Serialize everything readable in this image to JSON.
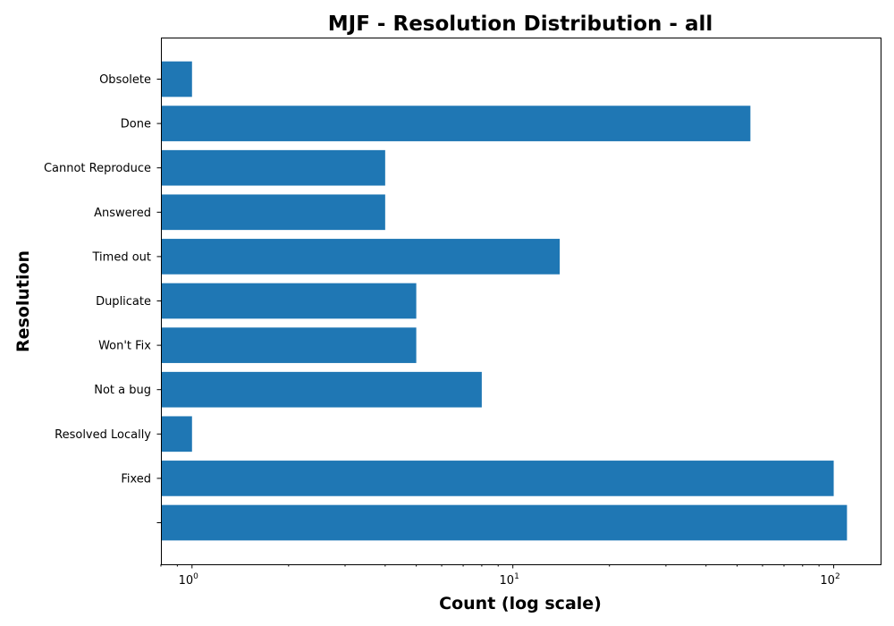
{
  "chart_data": {
    "type": "bar",
    "orientation": "horizontal",
    "title": "MJF - Resolution Distribution - all",
    "xlabel": "Count (log scale)",
    "ylabel": "Resolution",
    "xscale": "log",
    "xlim": [
      0.8,
      140
    ],
    "categories": [
      "",
      "Fixed",
      "Resolved Locally",
      "Not a bug",
      "Won't Fix",
      "Duplicate",
      "Timed out",
      "Answered",
      "Cannot Reproduce",
      "Done",
      "Obsolete"
    ],
    "values": [
      110,
      100,
      1,
      8,
      5,
      5,
      14,
      4,
      4,
      55,
      1
    ],
    "x_ticks": [
      {
        "value": 1,
        "base": "10",
        "exp": "0"
      },
      {
        "value": 10,
        "base": "10",
        "exp": "1"
      },
      {
        "value": 100,
        "base": "10",
        "exp": "2"
      }
    ],
    "bar_color": "#1f77b4",
    "grid": false,
    "legend": "none"
  }
}
